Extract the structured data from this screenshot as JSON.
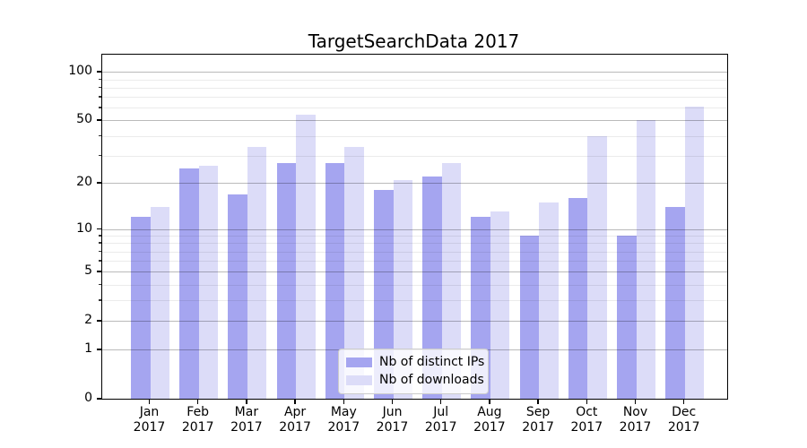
{
  "chart_data": {
    "type": "bar",
    "title": "TargetSearchData 2017",
    "categories": [
      "Jan",
      "Feb",
      "Mar",
      "Apr",
      "May",
      "Jun",
      "Jul",
      "Aug",
      "Sep",
      "Oct",
      "Nov",
      "Dec"
    ],
    "year_label": "2017",
    "series": [
      {
        "name": "Nb of distinct IPs",
        "color": "#a5a5f0",
        "values": [
          12,
          25,
          17,
          27,
          27,
          18,
          22,
          12,
          9,
          16,
          9,
          14
        ]
      },
      {
        "name": "Nb of downloads",
        "color": "#dcdcf8",
        "values": [
          14,
          26,
          34,
          54,
          34,
          21,
          27,
          13,
          15,
          40,
          50,
          61
        ]
      }
    ],
    "yscale": "log1p",
    "ylim": [
      0,
      128
    ],
    "yticks": [
      0,
      1,
      2,
      5,
      10,
      20,
      50,
      100
    ],
    "minor_yticks": [
      3,
      4,
      6,
      7,
      8,
      9,
      30,
      40,
      60,
      70,
      80,
      90
    ],
    "grid": true,
    "legend_position": "lower center",
    "xlabel": "",
    "ylabel": ""
  },
  "colors": {
    "background": "#ffffff",
    "spine": "#000000",
    "major_grid": "rgba(0,0,0,0.27)",
    "minor_grid": "rgba(0,0,0,0.08)"
  }
}
